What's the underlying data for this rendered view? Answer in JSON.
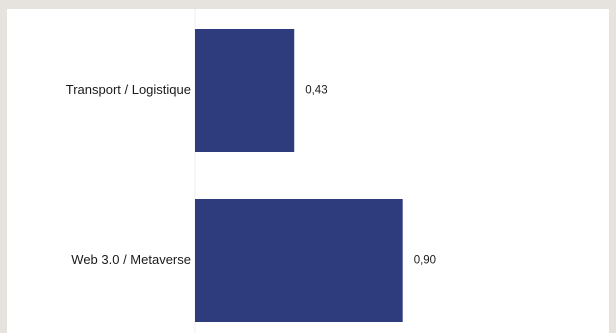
{
  "chart_data": {
    "type": "bar",
    "orientation": "horizontal",
    "categories": [
      "Transport / Logistique",
      "Web 3.0 / Metaverse"
    ],
    "values": [
      0.43,
      0.9
    ],
    "value_labels": [
      "0,43",
      "0,90"
    ],
    "title": "",
    "xlabel": "",
    "ylabel": "",
    "xlim": [
      0,
      1.3
    ],
    "grid": false,
    "legend": "none",
    "bar_color": "#2e3c7e"
  }
}
